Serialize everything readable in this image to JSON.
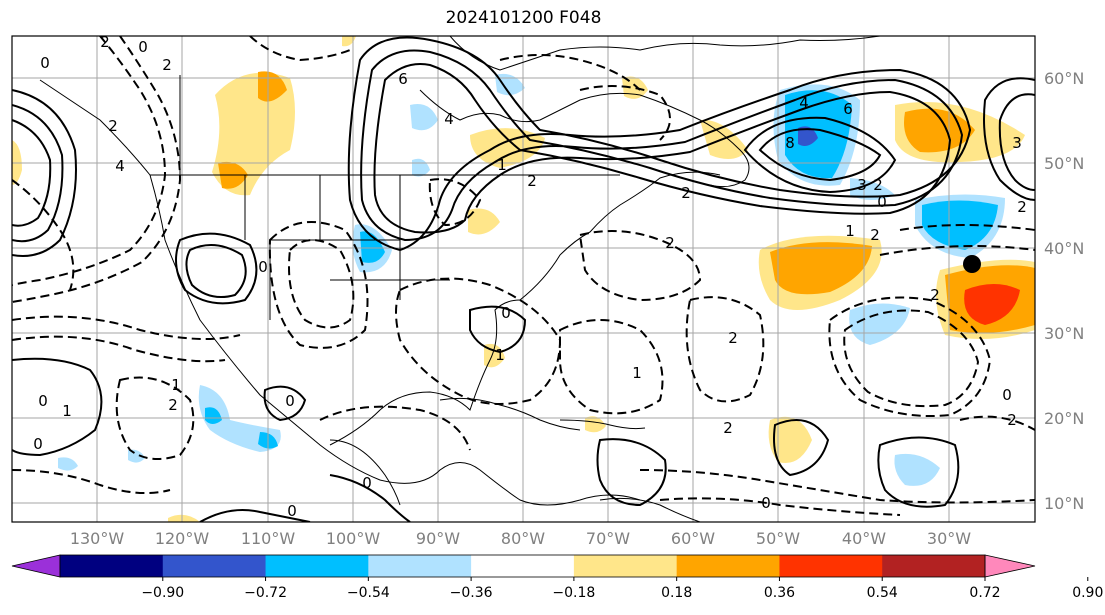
{
  "title": "2024101200 F048",
  "longitude_labels": [
    "130°W",
    "120°W",
    "110°W",
    "100°W",
    "90°W",
    "80°W",
    "70°W",
    "60°W",
    "50°W",
    "40°W",
    "30°W"
  ],
  "latitude_labels": [
    "60°N",
    "50°N",
    "40°N",
    "30°N",
    "20°N",
    "10°N"
  ],
  "colorbar": {
    "colors": [
      "#9b30d9",
      "#000080",
      "#3355cc",
      "#00bfff",
      "#b0e2ff",
      "#ffffff",
      "#ffe68a",
      "#ffa500",
      "#ff3300",
      "#b22222",
      "#ff88bb"
    ],
    "tick_labels": [
      "−0.90",
      "−0.72",
      "−0.54",
      "−0.36",
      "−0.18",
      "0.18",
      "0.36",
      "0.54",
      "0.72",
      "0.90"
    ]
  },
  "contour_labels": [
    "0",
    "2",
    "0",
    "2",
    "6",
    "4",
    "8",
    "6",
    "4",
    "3",
    "2",
    "3",
    "0",
    "2",
    "2",
    "1",
    "2",
    "0",
    "2",
    "0",
    "1",
    "0",
    "2",
    "2",
    "1",
    "0",
    "0",
    "2",
    "2",
    "1",
    "0",
    "0",
    "1",
    "0",
    "1",
    "2",
    "2",
    "4",
    "2",
    "0"
  ]
}
